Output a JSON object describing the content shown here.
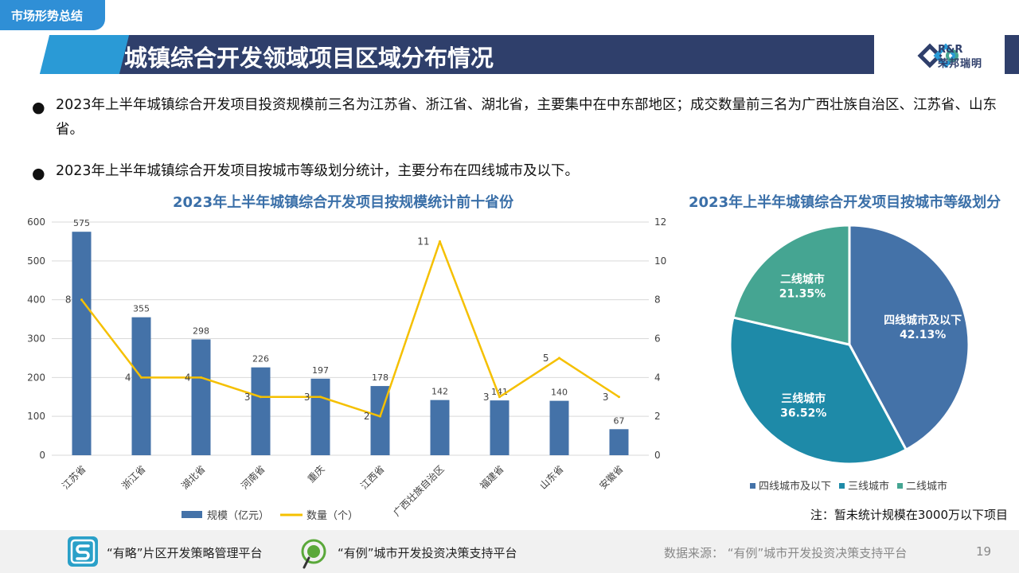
{
  "header": {
    "tag": "市场形势总结",
    "title": "城镇综合开发领域项目区域分布情况",
    "logo_text": "R&R",
    "logo_cn": "荣邦瑞明"
  },
  "bullets": [
    "2023年上半年城镇综合开发项目投资规模前三名为江苏省、浙江省、湖北省，主要集中在中东部地区；成交数量前三名为广西壮族自治区、江苏省、山东省。",
    "2023年上半年城镇综合开发项目按城市等级划分统计，主要分布在四线城市及以下。"
  ],
  "colors": {
    "bar": "#4472a8",
    "line": "#f5c000",
    "pie": [
      "#4472a8",
      "#1e8aa8",
      "#45a592"
    ],
    "title": "#3a6fa8"
  },
  "chart_data": [
    {
      "type": "bar",
      "title": "2023年上半年城镇综合开发项目按规模统计前十省份",
      "categories": [
        "江苏省",
        "浙江省",
        "湖北省",
        "河南省",
        "重庆",
        "江西省",
        "广西壮族自治区",
        "福建省",
        "山东省",
        "安徽省"
      ],
      "series": [
        {
          "name": "规模（亿元）",
          "type": "bar",
          "axis": "left",
          "values": [
            575,
            355,
            298,
            226,
            197,
            178,
            142,
            141,
            140,
            67
          ]
        },
        {
          "name": "数量（个）",
          "type": "line",
          "axis": "right",
          "values": [
            8,
            4,
            4,
            3,
            3,
            2,
            11,
            3,
            5,
            3
          ]
        }
      ],
      "ylim_left": [
        0,
        600
      ],
      "ylim_right": [
        0,
        12
      ],
      "left_ticks": [
        "0",
        "100",
        "200",
        "300",
        "400",
        "500",
        "600"
      ],
      "right_ticks": [
        "0",
        "2",
        "4",
        "6",
        "8",
        "10",
        "12"
      ],
      "legend": "bottom",
      "grid": true
    },
    {
      "type": "pie",
      "title": "2023年上半年城镇综合开发项目按城市等级划分",
      "labels": [
        "四线城市及以下",
        "三线城市",
        "二线城市"
      ],
      "values": [
        42.13,
        36.52,
        21.35
      ],
      "value_labels": [
        "42.13%",
        "36.52%",
        "21.35%"
      ],
      "legend": "bottom"
    }
  ],
  "note": "注：暂未统计规模在3000万以下项目",
  "footer": {
    "platform1": "“有略”片区开发策略管理平台",
    "platform2": "“有例”城市开发投资决策支持平台",
    "source": "数据来源：  “有例”城市开发投资决策支持平台",
    "page": "19"
  }
}
